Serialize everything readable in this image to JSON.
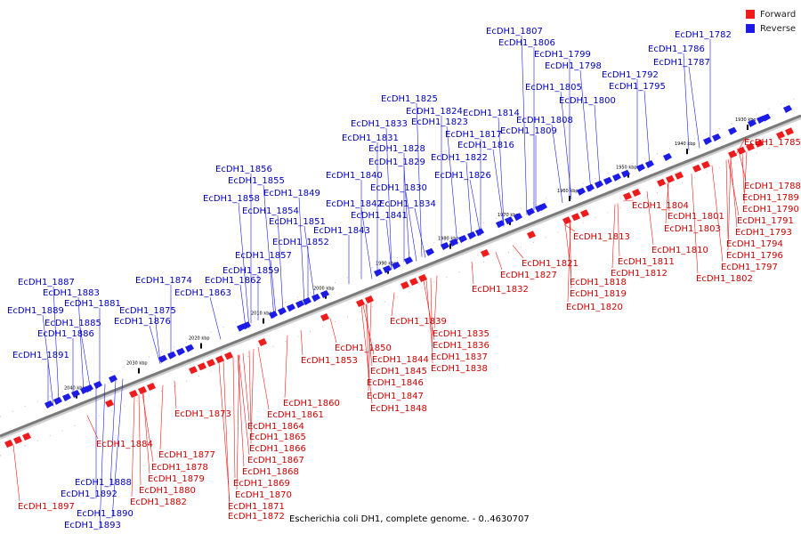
{
  "caption": "Escherichia coli DH1, complete genome. - 0..4630707",
  "legend": [
    {
      "label": "Forward",
      "color": "#ee1c1c"
    },
    {
      "label": "Reverse",
      "color": "#1c1ce6"
    }
  ],
  "colors": {
    "forward": "#ee1c1c",
    "reverse": "#1c1ce6",
    "axis": "#7a7a7a",
    "text_forward": "#cc0000",
    "text_reverse": "#0000bb"
  },
  "ticks": [
    "1930 kbp",
    "1940 kbp",
    "1950 kbp",
    "1960 kbp",
    "1970 kbp",
    "1980 kbp",
    "1990 kbp",
    "2000 kbp",
    "2010 kbp",
    "2020 kbp",
    "2030 kbp",
    "2040 kbp"
  ],
  "reverse_genes": [
    "EcDH1_1782",
    "EcDH1_1786",
    "EcDH1_1787",
    "EcDH1_1792",
    "EcDH1_1795",
    "EcDH1_1798",
    "EcDH1_1799",
    "EcDH1_1800",
    "EcDH1_1805",
    "EcDH1_1806",
    "EcDH1_1807",
    "EcDH1_1808",
    "EcDH1_1809",
    "EcDH1_1814",
    "EcDH1_1816",
    "EcDH1_1817",
    "EcDH1_1822",
    "EcDH1_1823",
    "EcDH1_1824",
    "EcDH1_1825",
    "EcDH1_1826",
    "EcDH1_1828",
    "EcDH1_1829",
    "EcDH1_1830",
    "EcDH1_1831",
    "EcDH1_1833",
    "EcDH1_1834",
    "EcDH1_1840",
    "EcDH1_1841",
    "EcDH1_1842",
    "EcDH1_1843",
    "EcDH1_1849",
    "EcDH1_1851",
    "EcDH1_1852",
    "EcDH1_1854",
    "EcDH1_1855",
    "EcDH1_1856",
    "EcDH1_1857",
    "EcDH1_1858",
    "EcDH1_1859",
    "EcDH1_1862",
    "EcDH1_1863",
    "EcDH1_1874",
    "EcDH1_1875",
    "EcDH1_1876",
    "EcDH1_1881",
    "EcDH1_1883",
    "EcDH1_1885",
    "EcDH1_1886",
    "EcDH1_1887",
    "EcDH1_1889",
    "EcDH1_1891",
    "EcDH1_1888",
    "EcDH1_1890",
    "EcDH1_1892",
    "EcDH1_1893"
  ],
  "forward_genes": [
    "EcDH1_1785",
    "EcDH1_1788",
    "EcDH1_1789",
    "EcDH1_1790",
    "EcDH1_1791",
    "EcDH1_1793",
    "EcDH1_1794",
    "EcDH1_1796",
    "EcDH1_1797",
    "EcDH1_1802",
    "EcDH1_1801",
    "EcDH1_1803",
    "EcDH1_1804",
    "EcDH1_1810",
    "EcDH1_1811",
    "EcDH1_1812",
    "EcDH1_1813",
    "EcDH1_1818",
    "EcDH1_1819",
    "EcDH1_1820",
    "EcDH1_1821",
    "EcDH1_1827",
    "EcDH1_1832",
    "EcDH1_1835",
    "EcDH1_1836",
    "EcDH1_1837",
    "EcDH1_1838",
    "EcDH1_1839",
    "EcDH1_1844",
    "EcDH1_1845",
    "EcDH1_1846",
    "EcDH1_1847",
    "EcDH1_1848",
    "EcDH1_1850",
    "EcDH1_1853",
    "EcDH1_1860",
    "EcDH1_1861",
    "EcDH1_1864",
    "EcDH1_1865",
    "EcDH1_1866",
    "EcDH1_1867",
    "EcDH1_1868",
    "EcDH1_1869",
    "EcDH1_1870",
    "EcDH1_1871",
    "EcDH1_1872",
    "EcDH1_1873",
    "EcDH1_1877",
    "EcDH1_1878",
    "EcDH1_1879",
    "EcDH1_1880",
    "EcDH1_1882",
    "EcDH1_1884",
    "EcDH1_1897"
  ]
}
